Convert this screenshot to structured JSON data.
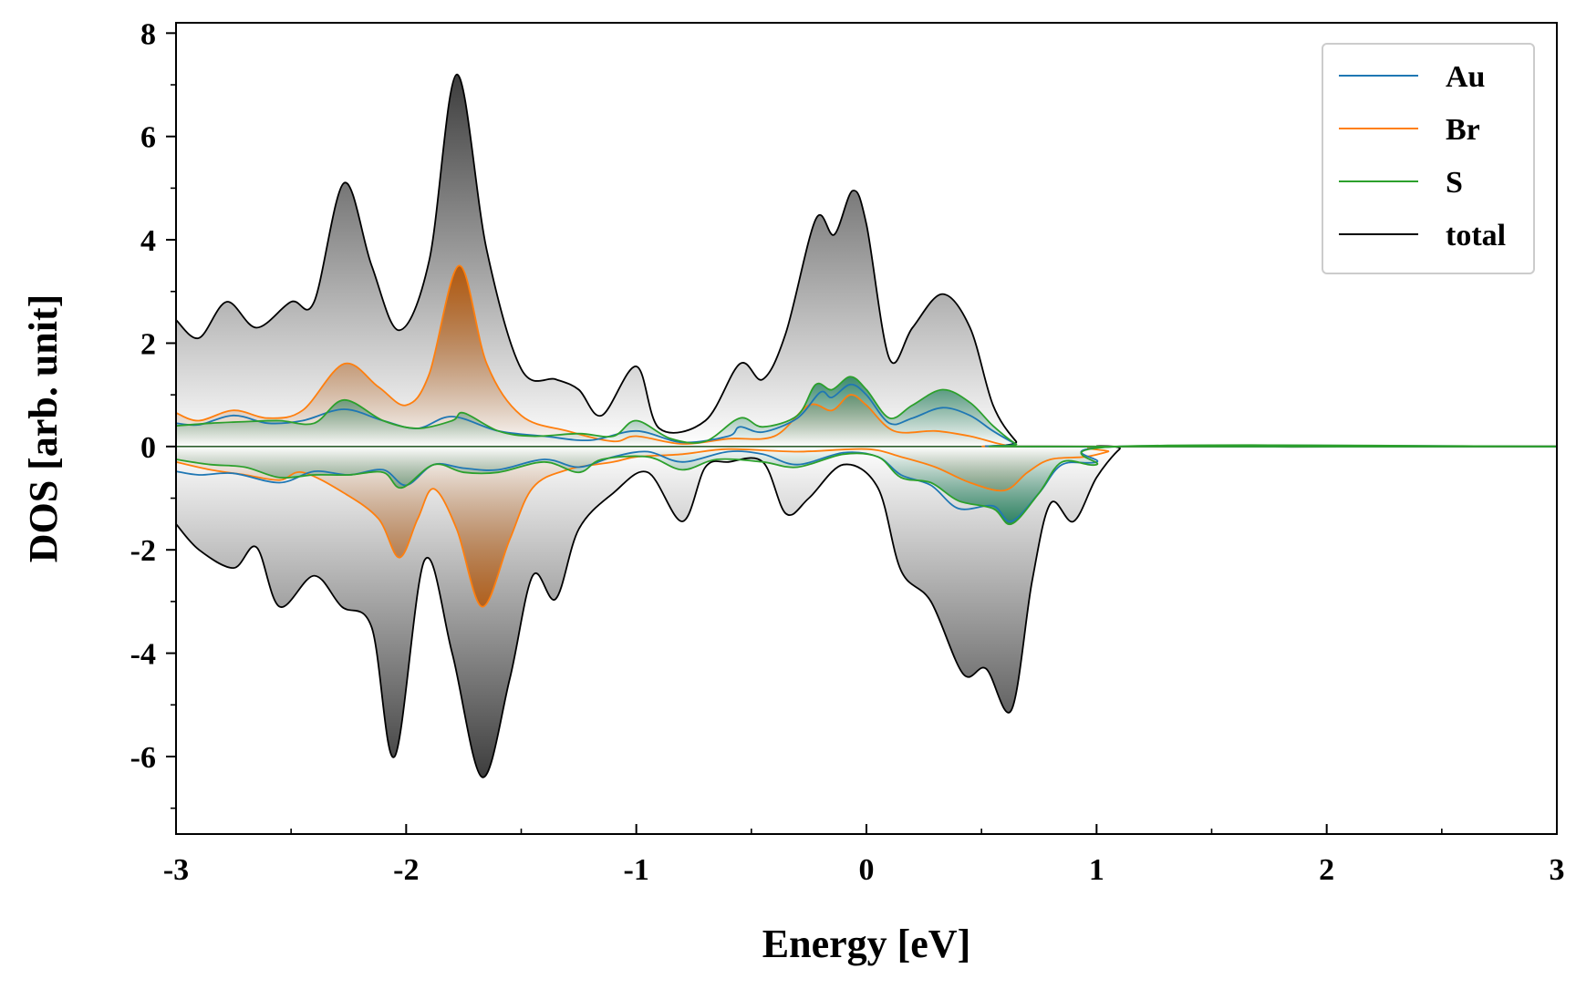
{
  "chart_data": {
    "type": "area",
    "title": "",
    "xlabel": "Energy [eV]",
    "ylabel": "DOS [arb. unit]",
    "xlim": [
      -3,
      3
    ],
    "ylim": [
      -7.5,
      8.2
    ],
    "x_ticks": [
      -3,
      -2,
      -1,
      0,
      1,
      2,
      3
    ],
    "x_tick_labels": [
      "-3",
      "-2",
      "-1",
      "0",
      "1",
      "2",
      "3"
    ],
    "y_ticks": [
      -6,
      -4,
      -2,
      0,
      2,
      4,
      6,
      8
    ],
    "y_tick_labels": [
      "-6",
      "-4",
      "-2",
      "0",
      "2",
      "4",
      "6",
      "8"
    ],
    "legend_position": "top-right",
    "series": [
      {
        "name": "Au",
        "color": "#1f77b4",
        "up": [
          [
            -3.0,
            0.45
          ],
          [
            -2.9,
            0.42
          ],
          [
            -2.75,
            0.6
          ],
          [
            -2.6,
            0.45
          ],
          [
            -2.45,
            0.5
          ],
          [
            -2.27,
            0.72
          ],
          [
            -2.1,
            0.5
          ],
          [
            -1.95,
            0.35
          ],
          [
            -1.8,
            0.58
          ],
          [
            -1.6,
            0.3
          ],
          [
            -1.4,
            0.2
          ],
          [
            -1.2,
            0.12
          ],
          [
            -1.0,
            0.3
          ],
          [
            -0.8,
            0.08
          ],
          [
            -0.6,
            0.2
          ],
          [
            -0.55,
            0.38
          ],
          [
            -0.45,
            0.28
          ],
          [
            -0.3,
            0.55
          ],
          [
            -0.2,
            1.05
          ],
          [
            -0.15,
            0.95
          ],
          [
            -0.07,
            1.2
          ],
          [
            0.0,
            1.0
          ],
          [
            0.1,
            0.45
          ],
          [
            0.2,
            0.55
          ],
          [
            0.33,
            0.75
          ],
          [
            0.45,
            0.6
          ],
          [
            0.55,
            0.3
          ],
          [
            0.65,
            0.05
          ],
          [
            0.7,
            0.0
          ],
          [
            3.0,
            0.0
          ]
        ],
        "down": [
          [
            -3.0,
            -0.48
          ],
          [
            -2.9,
            -0.55
          ],
          [
            -2.75,
            -0.52
          ],
          [
            -2.55,
            -0.7
          ],
          [
            -2.4,
            -0.48
          ],
          [
            -2.25,
            -0.55
          ],
          [
            -2.1,
            -0.45
          ],
          [
            -2.0,
            -0.75
          ],
          [
            -1.88,
            -0.35
          ],
          [
            -1.75,
            -0.42
          ],
          [
            -1.6,
            -0.45
          ],
          [
            -1.4,
            -0.25
          ],
          [
            -1.25,
            -0.4
          ],
          [
            -1.1,
            -0.2
          ],
          [
            -0.95,
            -0.1
          ],
          [
            -0.8,
            -0.3
          ],
          [
            -0.6,
            -0.1
          ],
          [
            -0.45,
            -0.15
          ],
          [
            -0.3,
            -0.35
          ],
          [
            -0.1,
            -0.12
          ],
          [
            0.05,
            -0.2
          ],
          [
            0.15,
            -0.55
          ],
          [
            0.28,
            -0.75
          ],
          [
            0.4,
            -1.2
          ],
          [
            0.55,
            -1.15
          ],
          [
            0.63,
            -1.45
          ],
          [
            0.75,
            -0.9
          ],
          [
            0.85,
            -0.35
          ],
          [
            1.0,
            -0.3
          ],
          [
            1.1,
            0.0
          ],
          [
            3.0,
            0.0
          ]
        ]
      },
      {
        "name": "Br",
        "color": "#ff7f0e",
        "up": [
          [
            -3.0,
            0.65
          ],
          [
            -2.9,
            0.5
          ],
          [
            -2.75,
            0.7
          ],
          [
            -2.6,
            0.55
          ],
          [
            -2.45,
            0.7
          ],
          [
            -2.27,
            1.6
          ],
          [
            -2.12,
            1.15
          ],
          [
            -2.0,
            0.8
          ],
          [
            -1.9,
            1.4
          ],
          [
            -1.77,
            3.5
          ],
          [
            -1.65,
            1.6
          ],
          [
            -1.5,
            0.6
          ],
          [
            -1.3,
            0.3
          ],
          [
            -1.1,
            0.1
          ],
          [
            -1.0,
            0.2
          ],
          [
            -0.8,
            0.05
          ],
          [
            -0.6,
            0.15
          ],
          [
            -0.4,
            0.2
          ],
          [
            -0.25,
            0.8
          ],
          [
            -0.15,
            0.7
          ],
          [
            -0.07,
            1.0
          ],
          [
            0.0,
            0.8
          ],
          [
            0.12,
            0.3
          ],
          [
            0.3,
            0.3
          ],
          [
            0.45,
            0.2
          ],
          [
            0.6,
            0.03
          ],
          [
            0.7,
            0.0
          ],
          [
            3.0,
            0.0
          ]
        ],
        "down": [
          [
            -3.0,
            -0.3
          ],
          [
            -2.85,
            -0.45
          ],
          [
            -2.7,
            -0.55
          ],
          [
            -2.55,
            -0.65
          ],
          [
            -2.45,
            -0.5
          ],
          [
            -2.27,
            -0.9
          ],
          [
            -2.12,
            -1.4
          ],
          [
            -2.03,
            -2.15
          ],
          [
            -1.95,
            -1.4
          ],
          [
            -1.88,
            -0.82
          ],
          [
            -1.78,
            -1.6
          ],
          [
            -1.67,
            -3.1
          ],
          [
            -1.55,
            -1.8
          ],
          [
            -1.45,
            -0.8
          ],
          [
            -1.3,
            -0.45
          ],
          [
            -1.1,
            -0.3
          ],
          [
            -1.0,
            -0.2
          ],
          [
            -0.8,
            -0.15
          ],
          [
            -0.6,
            -0.05
          ],
          [
            -0.3,
            -0.1
          ],
          [
            0.0,
            -0.05
          ],
          [
            0.15,
            -0.2
          ],
          [
            0.3,
            -0.4
          ],
          [
            0.45,
            -0.7
          ],
          [
            0.6,
            -0.85
          ],
          [
            0.7,
            -0.5
          ],
          [
            0.8,
            -0.25
          ],
          [
            0.95,
            -0.2
          ],
          [
            1.05,
            -0.1
          ],
          [
            1.12,
            0.0
          ],
          [
            3.0,
            0.0
          ]
        ]
      },
      {
        "name": "S",
        "color": "#2ca02c",
        "up": [
          [
            -3.0,
            0.4
          ],
          [
            -2.85,
            0.45
          ],
          [
            -2.7,
            0.48
          ],
          [
            -2.55,
            0.5
          ],
          [
            -2.4,
            0.45
          ],
          [
            -2.27,
            0.9
          ],
          [
            -2.1,
            0.5
          ],
          [
            -1.95,
            0.35
          ],
          [
            -1.8,
            0.5
          ],
          [
            -1.75,
            0.65
          ],
          [
            -1.6,
            0.3
          ],
          [
            -1.45,
            0.2
          ],
          [
            -1.25,
            0.25
          ],
          [
            -1.1,
            0.2
          ],
          [
            -1.0,
            0.5
          ],
          [
            -0.85,
            0.15
          ],
          [
            -0.7,
            0.1
          ],
          [
            -0.55,
            0.55
          ],
          [
            -0.45,
            0.38
          ],
          [
            -0.3,
            0.6
          ],
          [
            -0.22,
            1.2
          ],
          [
            -0.15,
            1.1
          ],
          [
            -0.07,
            1.35
          ],
          [
            0.0,
            1.1
          ],
          [
            0.1,
            0.55
          ],
          [
            0.2,
            0.8
          ],
          [
            0.33,
            1.1
          ],
          [
            0.45,
            0.85
          ],
          [
            0.55,
            0.4
          ],
          [
            0.65,
            0.05
          ],
          [
            0.72,
            0.0
          ],
          [
            3.0,
            0.0
          ]
        ],
        "down": [
          [
            -3.0,
            -0.25
          ],
          [
            -2.85,
            -0.35
          ],
          [
            -2.7,
            -0.4
          ],
          [
            -2.55,
            -0.6
          ],
          [
            -2.4,
            -0.55
          ],
          [
            -2.25,
            -0.55
          ],
          [
            -2.1,
            -0.5
          ],
          [
            -2.02,
            -0.8
          ],
          [
            -1.88,
            -0.35
          ],
          [
            -1.75,
            -0.5
          ],
          [
            -1.6,
            -0.5
          ],
          [
            -1.4,
            -0.3
          ],
          [
            -1.25,
            -0.5
          ],
          [
            -1.15,
            -0.25
          ],
          [
            -0.95,
            -0.2
          ],
          [
            -0.8,
            -0.45
          ],
          [
            -0.65,
            -0.25
          ],
          [
            -0.45,
            -0.3
          ],
          [
            -0.3,
            -0.4
          ],
          [
            -0.1,
            -0.15
          ],
          [
            0.05,
            -0.2
          ],
          [
            0.15,
            -0.6
          ],
          [
            0.28,
            -0.7
          ],
          [
            0.4,
            -1.05
          ],
          [
            0.55,
            -1.2
          ],
          [
            0.63,
            -1.5
          ],
          [
            0.75,
            -0.9
          ],
          [
            0.85,
            -0.3
          ],
          [
            1.0,
            -0.35
          ],
          [
            1.1,
            0.0
          ],
          [
            3.0,
            0.0
          ]
        ]
      },
      {
        "name": "total",
        "color": "#000000",
        "up": [
          [
            -3.0,
            2.45
          ],
          [
            -2.9,
            2.1
          ],
          [
            -2.78,
            2.8
          ],
          [
            -2.65,
            2.3
          ],
          [
            -2.5,
            2.8
          ],
          [
            -2.4,
            2.8
          ],
          [
            -2.27,
            5.1
          ],
          [
            -2.15,
            3.5
          ],
          [
            -2.03,
            2.25
          ],
          [
            -1.9,
            3.6
          ],
          [
            -1.78,
            7.2
          ],
          [
            -1.65,
            3.8
          ],
          [
            -1.5,
            1.5
          ],
          [
            -1.35,
            1.3
          ],
          [
            -1.25,
            1.1
          ],
          [
            -1.15,
            0.6
          ],
          [
            -1.0,
            1.55
          ],
          [
            -0.9,
            0.35
          ],
          [
            -0.7,
            0.5
          ],
          [
            -0.55,
            1.6
          ],
          [
            -0.45,
            1.3
          ],
          [
            -0.35,
            2.2
          ],
          [
            -0.22,
            4.4
          ],
          [
            -0.14,
            4.1
          ],
          [
            -0.06,
            4.95
          ],
          [
            0.0,
            4.3
          ],
          [
            0.1,
            1.7
          ],
          [
            0.2,
            2.3
          ],
          [
            0.33,
            2.95
          ],
          [
            0.45,
            2.3
          ],
          [
            0.55,
            0.8
          ],
          [
            0.65,
            0.1
          ],
          [
            0.7,
            0.0
          ],
          [
            3.0,
            0.0
          ]
        ],
        "down": [
          [
            -3.0,
            -1.5
          ],
          [
            -2.9,
            -2.0
          ],
          [
            -2.75,
            -2.35
          ],
          [
            -2.65,
            -1.95
          ],
          [
            -2.55,
            -3.1
          ],
          [
            -2.4,
            -2.5
          ],
          [
            -2.28,
            -3.1
          ],
          [
            -2.15,
            -3.5
          ],
          [
            -2.05,
            -6.0
          ],
          [
            -1.92,
            -2.2
          ],
          [
            -1.8,
            -4.0
          ],
          [
            -1.67,
            -6.4
          ],
          [
            -1.55,
            -4.5
          ],
          [
            -1.45,
            -2.5
          ],
          [
            -1.35,
            -2.95
          ],
          [
            -1.25,
            -1.6
          ],
          [
            -1.1,
            -0.9
          ],
          [
            -0.95,
            -0.5
          ],
          [
            -0.8,
            -1.45
          ],
          [
            -0.7,
            -0.4
          ],
          [
            -0.6,
            -0.3
          ],
          [
            -0.45,
            -0.3
          ],
          [
            -0.35,
            -1.3
          ],
          [
            -0.25,
            -1.0
          ],
          [
            -0.1,
            -0.35
          ],
          [
            0.05,
            -0.8
          ],
          [
            0.15,
            -2.4
          ],
          [
            0.28,
            -3.0
          ],
          [
            0.42,
            -4.4
          ],
          [
            0.52,
            -4.3
          ],
          [
            0.63,
            -5.1
          ],
          [
            0.72,
            -2.6
          ],
          [
            0.8,
            -1.1
          ],
          [
            0.9,
            -1.45
          ],
          [
            1.0,
            -0.6
          ],
          [
            1.1,
            -0.05
          ],
          [
            1.15,
            0.0
          ],
          [
            3.0,
            0.0
          ]
        ]
      }
    ]
  }
}
